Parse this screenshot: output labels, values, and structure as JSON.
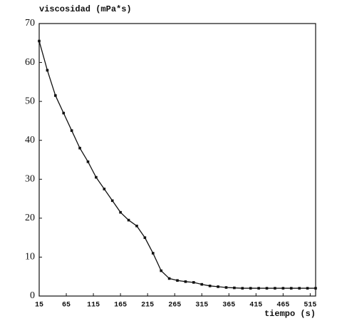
{
  "chart_data": {
    "type": "line",
    "title": "viscosidad (mPa*s)",
    "x_label": "tiempo (s)",
    "x": [
      15,
      30,
      45,
      60,
      75,
      90,
      105,
      120,
      135,
      150,
      165,
      180,
      195,
      210,
      225,
      240,
      255,
      270,
      285,
      300,
      315,
      330,
      345,
      360,
      375,
      390,
      405,
      420,
      435,
      450,
      465,
      480,
      495,
      510,
      525
    ],
    "series": [
      {
        "color": "#111111",
        "values": [
          65.5,
          58,
          51.5,
          47,
          42.5,
          38,
          34.5,
          30.5,
          27.5,
          24.5,
          21.5,
          19.5,
          18,
          15,
          11,
          6.5,
          4.5,
          4,
          3.7,
          3.5,
          3,
          2.6,
          2.4,
          2.2,
          2.1,
          2,
          2,
          2,
          2,
          2,
          2,
          2,
          2,
          2,
          2
        ]
      }
    ],
    "xlim": [
      15,
      525
    ],
    "ylim": [
      0,
      70
    ],
    "xticks": [
      15,
      65,
      115,
      165,
      215,
      265,
      315,
      365,
      415,
      465,
      515
    ],
    "yticks": [
      0,
      10,
      20,
      30,
      40,
      50,
      60,
      70
    ]
  }
}
